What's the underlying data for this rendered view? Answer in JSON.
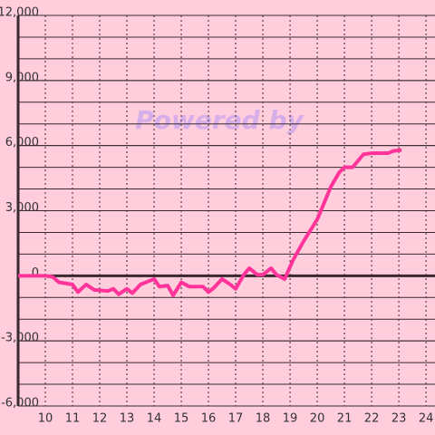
{
  "chart_data": {
    "type": "line",
    "watermark": "Powered by",
    "x": [
      9,
      10,
      10.27,
      10.5,
      11,
      11.2,
      11.5,
      11.8,
      12.3,
      12.5,
      12.7,
      13,
      13.2,
      13.5,
      14,
      14.2,
      14.5,
      14.7,
      15,
      15.3,
      15.8,
      16,
      16.2,
      16.5,
      16.8,
      17,
      17.3,
      17.5,
      17.8,
      18,
      18.3,
      18.5,
      18.8,
      19.1,
      19.5,
      20,
      20.5,
      20.8,
      21,
      21.3,
      21.7,
      22,
      22.6,
      22.8,
      23.1
    ],
    "series": [
      {
        "color": "#ff3399",
        "values": [
          0,
          0,
          -50,
          -300,
          -400,
          -750,
          -400,
          -650,
          -700,
          -600,
          -850,
          -600,
          -800,
          -400,
          -150,
          -500,
          -450,
          -900,
          -300,
          -500,
          -500,
          -750,
          -550,
          -150,
          -400,
          -600,
          50,
          350,
          50,
          50,
          350,
          50,
          -150,
          700,
          1600,
          2600,
          4100,
          4750,
          5000,
          5000,
          5600,
          5650,
          5650,
          5750,
          5800
        ]
      }
    ],
    "xlim": [
      9,
      24.33
    ],
    "xticks": [
      10,
      11,
      12,
      13,
      14,
      15,
      16,
      17,
      18,
      19,
      20,
      21,
      22,
      23,
      24
    ],
    "ylim": [
      -6000,
      12000
    ],
    "yticks": [
      {
        "value": -6000,
        "label": "-6,000"
      },
      {
        "value": -3000,
        "label": "-3,000"
      },
      0,
      {
        "value": 3000,
        "label": "3,000"
      },
      {
        "value": 6000,
        "label": "6,000"
      },
      {
        "value": 9000,
        "label": "9,000"
      },
      {
        "value": 12000,
        "label": "12,000"
      }
    ],
    "y_gridlines": [
      -6000,
      -5000,
      -4000,
      -3000,
      -2000,
      -1000,
      1000,
      2000,
      3000,
      4000,
      5000,
      6000,
      7000,
      8000,
      9000,
      10000,
      11000,
      12000
    ],
    "grid": true
  }
}
